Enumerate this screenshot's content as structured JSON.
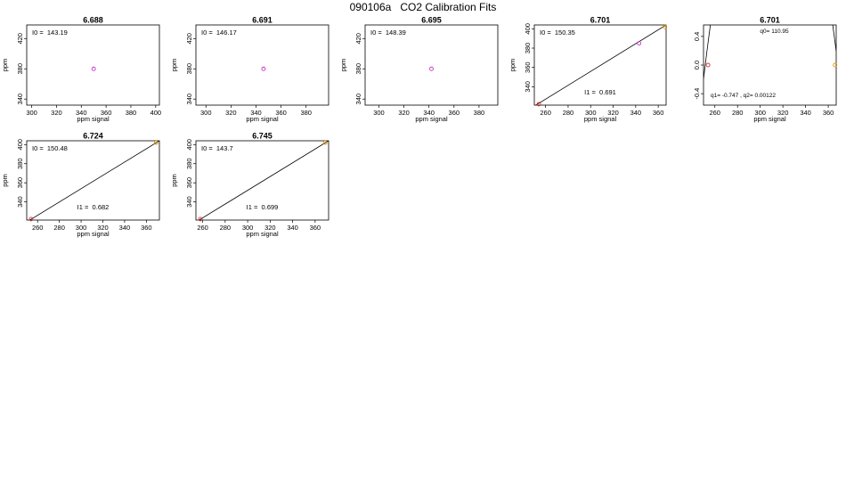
{
  "title": "090106a   CO2 Calibration Fits",
  "chart_data": [
    {
      "type": "scatter",
      "title": "6.688",
      "xlabel": "ppm signal",
      "ylabel": "ppm",
      "xlim": [
        296,
        403
      ],
      "ylim": [
        332,
        438
      ],
      "xticks": [
        300,
        320,
        340,
        360,
        380,
        400
      ],
      "yticks": [
        340,
        380,
        420
      ],
      "points": [
        {
          "x": 350,
          "y": 380,
          "color": "#cc33cc"
        }
      ],
      "lines": [],
      "annotations": [
        {
          "text": "I0 =  143.19",
          "pos": "top-left"
        }
      ]
    },
    {
      "type": "scatter",
      "title": "6.691",
      "xlabel": "ppm signal",
      "ylabel": "ppm",
      "xlim": [
        292,
        398
      ],
      "ylim": [
        332,
        438
      ],
      "xticks": [
        300,
        320,
        340,
        360,
        380
      ],
      "yticks": [
        340,
        380,
        420
      ],
      "points": [
        {
          "x": 346,
          "y": 380,
          "color": "#cc33cc"
        }
      ],
      "lines": [],
      "annotations": [
        {
          "text": "I0 =  146.17",
          "pos": "top-left"
        }
      ]
    },
    {
      "type": "scatter",
      "title": "6.695",
      "xlabel": "ppm signal",
      "ylabel": "ppm",
      "xlim": [
        289,
        395
      ],
      "ylim": [
        332,
        438
      ],
      "xticks": [
        300,
        320,
        340,
        360,
        380
      ],
      "yticks": [
        340,
        380,
        420
      ],
      "points": [
        {
          "x": 342,
          "y": 380,
          "color": "#cc33cc"
        }
      ],
      "lines": [],
      "annotations": [
        {
          "text": "I0 =  148.39",
          "pos": "top-left"
        }
      ]
    },
    {
      "type": "scatter",
      "title": "6.701",
      "xlabel": "ppm signal",
      "ylabel": "ppm",
      "xlim": [
        250,
        367
      ],
      "ylim": [
        321,
        404
      ],
      "xticks": [
        260,
        280,
        300,
        320,
        340,
        360
      ],
      "yticks": [
        340,
        360,
        380,
        400
      ],
      "points": [
        {
          "x": 254,
          "y": 322,
          "color": "#dd3333"
        },
        {
          "x": 343,
          "y": 385,
          "color": "#cc33cc"
        },
        {
          "x": 366,
          "y": 402,
          "color": "#e69500"
        }
      ],
      "lines": [
        {
          "x1": 250,
          "y1": 320,
          "x2": 367,
          "y2": 404
        }
      ],
      "annotations": [
        {
          "text": "I0 =  150.35",
          "pos": "top-left"
        },
        {
          "text": "I1 =  0.691",
          "pos": "bottom-center"
        }
      ]
    },
    {
      "type": "scatter",
      "title": "6.701",
      "xlabel": "ppm signal",
      "ylabel": "",
      "xlim": [
        250,
        367
      ],
      "ylim": [
        -0.56,
        0.56
      ],
      "xticks": [
        260,
        280,
        300,
        320,
        340,
        360
      ],
      "yticks": [
        -0.4,
        0.0,
        0.4
      ],
      "points": [
        {
          "x": 254,
          "y": 0.0,
          "color": "#dd3333"
        },
        {
          "x": 366,
          "y": 0.0,
          "color": "#e69500"
        }
      ],
      "curve": {
        "q0": 110.95,
        "q1": -0.747,
        "q2": 0.00122,
        "xc": 310,
        "ya": 3.75
      },
      "lines": [],
      "annotations": [
        {
          "text": "q0= 110.95",
          "pos": "top-center"
        },
        {
          "text": "q1= -0.747 , q2= 0.00122",
          "pos": "bottom-left"
        }
      ]
    },
    {
      "type": "scatter",
      "title": "6.724",
      "xlabel": "ppm signal",
      "ylabel": "ppm",
      "xlim": [
        250,
        372
      ],
      "ylim": [
        321,
        404
      ],
      "xticks": [
        260,
        280,
        300,
        320,
        340,
        360
      ],
      "yticks": [
        340,
        360,
        380,
        400
      ],
      "points": [
        {
          "x": 254,
          "y": 322,
          "color": "#dd3333"
        },
        {
          "x": 369,
          "y": 402,
          "color": "#e69500"
        }
      ],
      "lines": [
        {
          "x1": 250,
          "y1": 319,
          "x2": 372,
          "y2": 404
        }
      ],
      "annotations": [
        {
          "text": "I0 =  150.48",
          "pos": "top-left"
        },
        {
          "text": "I1 =  0.682",
          "pos": "bottom-center"
        }
      ]
    },
    {
      "type": "scatter",
      "title": "6.745",
      "xlabel": "ppm signal",
      "ylabel": "ppm",
      "xlim": [
        254,
        372
      ],
      "ylim": [
        321,
        404
      ],
      "xticks": [
        260,
        280,
        300,
        320,
        340,
        360
      ],
      "yticks": [
        340,
        360,
        380,
        400
      ],
      "points": [
        {
          "x": 258,
          "y": 322,
          "color": "#dd3333"
        },
        {
          "x": 369,
          "y": 402,
          "color": "#e69500"
        }
      ],
      "lines": [
        {
          "x1": 254,
          "y1": 319,
          "x2": 372,
          "y2": 404
        }
      ],
      "annotations": [
        {
          "text": "I0 =  143.7",
          "pos": "top-left"
        },
        {
          "text": "I1 =  0.699",
          "pos": "bottom-center"
        }
      ]
    }
  ]
}
